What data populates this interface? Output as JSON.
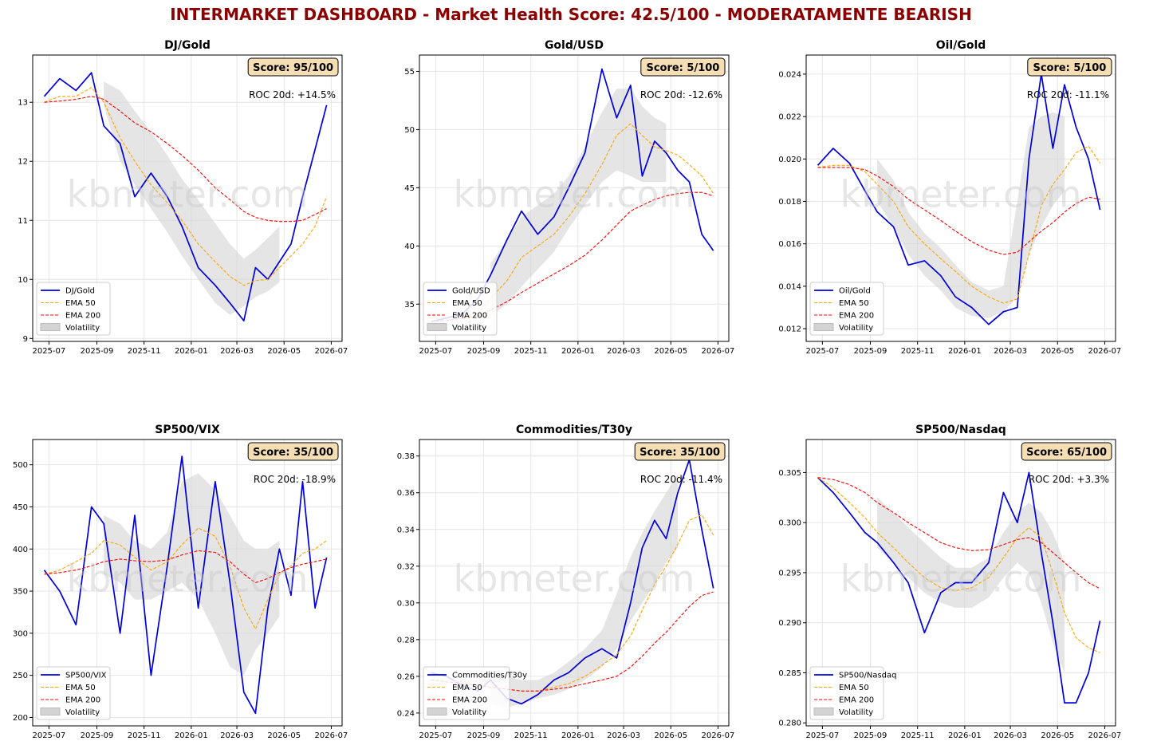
{
  "page": {
    "title": "INTERMARKET DASHBOARD - Market Health Score: 42.5/100 - MODERATAMENTE BEARISH"
  },
  "colors": {
    "title": "#8b0000",
    "price": "#0000dd",
    "ema50": "#ffa500",
    "ema200": "#ff0000",
    "band": "#d3d3d3",
    "score_box": "#f5deb3"
  },
  "watermark": "kbmeter.com",
  "chart_data": [
    {
      "type": "line",
      "title": "DJ/Gold",
      "score": "Score: 95/100",
      "roc": "ROC 20d: +14.5%",
      "x_ticks": [
        "2025-07",
        "2025-09",
        "2025-11",
        "2026-01",
        "2026-03",
        "2026-05",
        "2026-07"
      ],
      "ylim": [
        8.95,
        13.8
      ],
      "y_ticks": [
        9,
        10,
        11,
        12,
        13
      ],
      "y_tick_labels": [
        "9",
        "10",
        "11",
        "12",
        "13"
      ],
      "x": [
        "2025-06-25",
        "2025-07-15",
        "2025-08-05",
        "2025-08-25",
        "2025-09-10",
        "2025-10-01",
        "2025-10-20",
        "2025-11-10",
        "2025-12-01",
        "2025-12-20",
        "2026-01-10",
        "2026-02-01",
        "2026-02-20",
        "2026-03-10",
        "2026-03-25",
        "2026-04-10",
        "2026-04-25",
        "2026-05-10",
        "2026-05-25",
        "2026-06-10",
        "2026-06-25"
      ],
      "series": [
        {
          "name": "DJ/Gold",
          "values": [
            13.1,
            13.4,
            13.2,
            13.5,
            12.6,
            12.3,
            11.4,
            11.8,
            11.4,
            10.9,
            10.2,
            9.9,
            9.6,
            9.3,
            10.2,
            10.0,
            10.3,
            10.6,
            11.4,
            12.2,
            12.95
          ]
        },
        {
          "name": "EMA 50",
          "values": [
            13.0,
            13.1,
            13.1,
            13.25,
            13.0,
            12.4,
            12.0,
            11.6,
            11.3,
            11.0,
            10.6,
            10.3,
            10.05,
            9.9,
            9.98,
            10.0,
            10.2,
            10.4,
            10.6,
            10.9,
            11.4
          ]
        },
        {
          "name": "EMA 200",
          "values": [
            13.0,
            13.02,
            13.05,
            13.1,
            13.05,
            12.85,
            12.65,
            12.5,
            12.3,
            12.1,
            11.85,
            11.55,
            11.35,
            11.15,
            11.05,
            11.0,
            10.98,
            10.98,
            11.0,
            11.1,
            11.2
          ]
        }
      ],
      "band": {
        "start": 4,
        "end": 16,
        "upper": [
          13.35,
          13.2,
          12.85,
          12.5,
          12.1,
          11.7,
          11.35,
          10.95,
          10.6,
          10.35,
          10.5,
          10.7,
          10.9
        ],
        "lower": [
          12.95,
          12.0,
          11.6,
          11.2,
          10.8,
          10.4,
          10.0,
          9.6,
          9.4,
          9.55,
          9.7,
          9.8,
          9.95
        ]
      },
      "legend": [
        "DJ/Gold",
        "EMA 50",
        "EMA 200",
        "Volatility"
      ]
    },
    {
      "type": "line",
      "title": "Gold/USD",
      "score": "Score: 5/100",
      "roc": "ROC 20d: -12.6%",
      "x_ticks": [
        "2025-07",
        "2025-09",
        "2025-11",
        "2026-01",
        "2026-03",
        "2026-05",
        "2026-07"
      ],
      "ylim": [
        31.8,
        56.4
      ],
      "y_ticks": [
        35,
        40,
        45,
        50,
        55
      ],
      "y_tick_labels": [
        "35",
        "40",
        "45",
        "50",
        "55"
      ],
      "x": [
        "2025-06-25",
        "2025-07-15",
        "2025-08-05",
        "2025-08-25",
        "2025-09-10",
        "2025-10-01",
        "2025-10-20",
        "2025-11-10",
        "2025-12-01",
        "2025-12-20",
        "2026-01-10",
        "2026-02-01",
        "2026-02-20",
        "2026-03-10",
        "2026-03-25",
        "2026-04-10",
        "2026-04-25",
        "2026-05-10",
        "2026-05-25",
        "2026-06-10",
        "2026-06-25"
      ],
      "series": [
        {
          "name": "Gold/USD",
          "values": [
            33.5,
            33.8,
            34.2,
            35.5,
            37.5,
            40.5,
            43.0,
            41.0,
            42.5,
            45.0,
            48.0,
            55.2,
            51.0,
            53.8,
            46.0,
            49.0,
            48.0,
            46.5,
            45.5,
            41.0,
            39.6
          ]
        },
        {
          "name": "EMA 50",
          "values": [
            33.5,
            33.6,
            33.8,
            34.2,
            35.5,
            37.0,
            39.0,
            40.0,
            41.0,
            42.5,
            44.5,
            47.0,
            49.5,
            50.5,
            49.5,
            48.5,
            48.2,
            47.8,
            47.0,
            46.0,
            44.5
          ]
        },
        {
          "name": "EMA 200",
          "values": [
            33.5,
            33.6,
            33.8,
            34.0,
            34.5,
            35.2,
            36.0,
            36.8,
            37.6,
            38.3,
            39.2,
            40.5,
            41.8,
            43.0,
            43.5,
            44.0,
            44.3,
            44.5,
            44.6,
            44.6,
            44.3
          ]
        }
      ],
      "band": {
        "start": 4,
        "end": 16,
        "upper": [
          38.5,
          40.5,
          42.5,
          43.5,
          44.5,
          46.0,
          48.5,
          51.5,
          53.5,
          53.5,
          52.0,
          51.0,
          50.5
        ],
        "lower": [
          34.0,
          35.0,
          36.5,
          38.0,
          39.5,
          41.5,
          43.5,
          45.5,
          46.5,
          46.0,
          45.5,
          45.5,
          45.5
        ]
      },
      "legend": [
        "Gold/USD",
        "EMA 50",
        "EMA 200",
        "Volatility"
      ]
    },
    {
      "type": "line",
      "title": "Oil/Gold",
      "score": "Score: 5/100",
      "roc": "ROC 20d: -11.1%",
      "x_ticks": [
        "2025-07",
        "2025-09",
        "2025-11",
        "2026-01",
        "2026-03",
        "2026-05",
        "2026-07"
      ],
      "ylim": [
        0.0114,
        0.0249
      ],
      "y_ticks": [
        0.012,
        0.014,
        0.016,
        0.018,
        0.02,
        0.022,
        0.024
      ],
      "y_tick_labels": [
        "0.012",
        "0.014",
        "0.016",
        "0.018",
        "0.020",
        "0.022",
        "0.024"
      ],
      "x": [
        "2025-06-25",
        "2025-07-15",
        "2025-08-05",
        "2025-08-25",
        "2025-09-10",
        "2025-10-01",
        "2025-10-20",
        "2025-11-10",
        "2025-12-01",
        "2025-12-20",
        "2026-01-10",
        "2026-02-01",
        "2026-02-20",
        "2026-03-10",
        "2026-03-25",
        "2026-04-10",
        "2026-04-25",
        "2026-05-10",
        "2026-05-25",
        "2026-06-10",
        "2026-06-25"
      ],
      "series": [
        {
          "name": "Oil/Gold",
          "values": [
            0.0197,
            0.0205,
            0.0198,
            0.0185,
            0.0175,
            0.0168,
            0.015,
            0.0152,
            0.0145,
            0.0135,
            0.013,
            0.0122,
            0.0128,
            0.013,
            0.02,
            0.024,
            0.0205,
            0.0235,
            0.0215,
            0.02,
            0.0176
          ]
        },
        {
          "name": "EMA 50",
          "values": [
            0.0196,
            0.0197,
            0.0197,
            0.0194,
            0.0188,
            0.018,
            0.0168,
            0.016,
            0.0153,
            0.0147,
            0.014,
            0.0135,
            0.0132,
            0.0134,
            0.0155,
            0.0178,
            0.0188,
            0.0195,
            0.0203,
            0.0206,
            0.0198
          ]
        },
        {
          "name": "EMA 200",
          "values": [
            0.0196,
            0.0196,
            0.0196,
            0.0195,
            0.0192,
            0.0187,
            0.0181,
            0.0176,
            0.0171,
            0.0166,
            0.0161,
            0.0157,
            0.0155,
            0.0156,
            0.0161,
            0.0166,
            0.017,
            0.0175,
            0.0179,
            0.0182,
            0.0181
          ]
        },
        {
          "name": "",
          "values": [
            null,
            null,
            null,
            null,
            null,
            null,
            null,
            null,
            null,
            null,
            null,
            null,
            null,
            null,
            null,
            null,
            null,
            null,
            null,
            null,
            null
          ]
        }
      ],
      "band": {
        "start": 4,
        "end": 17,
        "upper": [
          0.02,
          0.019,
          0.0175,
          0.0165,
          0.0158,
          0.015,
          0.0142,
          0.0138,
          0.014,
          0.018,
          0.0215,
          0.022,
          0.0222,
          0.022
        ],
        "lower": [
          0.018,
          0.0168,
          0.0155,
          0.0145,
          0.0138,
          0.013,
          0.0126,
          0.0125,
          0.0128,
          0.0135,
          0.0155,
          0.0168,
          0.0178,
          0.0185
        ]
      },
      "legend": [
        "Oil/Gold",
        "EMA 50",
        "EMA 200",
        "Volatility"
      ]
    },
    {
      "type": "line",
      "title": "SP500/VIX",
      "score": "Score: 35/100",
      "roc": "ROC 20d: -18.9%",
      "x_ticks": [
        "2025-07",
        "2025-09",
        "2025-11",
        "2026-01",
        "2026-03",
        "2026-05",
        "2026-07"
      ],
      "ylim": [
        190,
        530
      ],
      "y_ticks": [
        200,
        250,
        300,
        350,
        400,
        450,
        500
      ],
      "y_tick_labels": [
        "200",
        "250",
        "300",
        "350",
        "400",
        "450",
        "500"
      ],
      "x": [
        "2025-06-25",
        "2025-07-15",
        "2025-08-05",
        "2025-08-25",
        "2025-09-10",
        "2025-10-01",
        "2025-10-20",
        "2025-11-10",
        "2025-12-01",
        "2025-12-20",
        "2026-01-10",
        "2026-02-01",
        "2026-02-20",
        "2026-03-10",
        "2026-03-25",
        "2026-04-10",
        "2026-04-25",
        "2026-05-10",
        "2026-05-25",
        "2026-06-10",
        "2026-06-25"
      ],
      "series": [
        {
          "name": "SP500/VIX",
          "values": [
            375,
            350,
            310,
            450,
            430,
            300,
            440,
            250,
            380,
            510,
            330,
            480,
            360,
            230,
            205,
            330,
            400,
            345,
            480,
            330,
            390
          ]
        },
        {
          "name": "EMA 50",
          "values": [
            370,
            375,
            385,
            395,
            410,
            405,
            390,
            375,
            385,
            405,
            425,
            415,
            380,
            330,
            305,
            340,
            370,
            380,
            395,
            400,
            410
          ]
        },
        {
          "name": "EMA 200",
          "values": [
            370,
            372,
            375,
            380,
            385,
            388,
            386,
            385,
            387,
            393,
            398,
            396,
            385,
            370,
            360,
            365,
            372,
            378,
            382,
            385,
            388
          ]
        }
      ],
      "band": {
        "start": 4,
        "end": 16,
        "upper": [
          440,
          430,
          410,
          400,
          420,
          480,
          490,
          470,
          440,
          410,
          400,
          400,
          410
        ],
        "lower": [
          370,
          360,
          340,
          340,
          350,
          360,
          340,
          300,
          260,
          250,
          280,
          300,
          320
        ]
      },
      "legend": [
        "SP500/VIX",
        "EMA 50",
        "EMA 200",
        "Volatility"
      ]
    },
    {
      "type": "line",
      "title": "Commodities/T30y",
      "score": "Score: 35/100",
      "roc": "ROC 20d: -11.4%",
      "x_ticks": [
        "2025-07",
        "2025-09",
        "2025-11",
        "2026-01",
        "2026-03",
        "2026-05",
        "2026-07"
      ],
      "ylim": [
        0.233,
        0.389
      ],
      "y_ticks": [
        0.24,
        0.26,
        0.28,
        0.3,
        0.32,
        0.34,
        0.36,
        0.38
      ],
      "y_tick_labels": [
        "0.24",
        "0.26",
        "0.28",
        "0.30",
        "0.32",
        "0.34",
        "0.36",
        "0.38"
      ],
      "x": [
        "2025-06-25",
        "2025-07-15",
        "2025-08-05",
        "2025-08-25",
        "2025-09-10",
        "2025-10-01",
        "2025-10-20",
        "2025-11-10",
        "2025-12-01",
        "2025-12-20",
        "2026-01-10",
        "2026-02-01",
        "2026-02-20",
        "2026-03-10",
        "2026-03-25",
        "2026-04-10",
        "2026-04-25",
        "2026-05-10",
        "2026-05-25",
        "2026-06-10",
        "2026-06-25"
      ],
      "series": [
        {
          "name": "Commodities/T30y",
          "values": [
            0.262,
            0.26,
            0.255,
            0.252,
            0.258,
            0.248,
            0.245,
            0.25,
            0.258,
            0.262,
            0.27,
            0.275,
            0.27,
            0.3,
            0.33,
            0.345,
            0.335,
            0.36,
            0.378,
            0.34,
            0.308
          ]
        },
        {
          "name": "EMA 50",
          "values": [
            0.258,
            0.258,
            0.257,
            0.255,
            0.254,
            0.253,
            0.252,
            0.252,
            0.254,
            0.256,
            0.26,
            0.266,
            0.272,
            0.282,
            0.296,
            0.31,
            0.32,
            0.332,
            0.345,
            0.348,
            0.337
          ]
        },
        {
          "name": "EMA 200",
          "values": [
            0.258,
            0.257,
            0.256,
            0.255,
            0.254,
            0.253,
            0.252,
            0.252,
            0.253,
            0.254,
            0.256,
            0.258,
            0.26,
            0.265,
            0.271,
            0.278,
            0.284,
            0.291,
            0.298,
            0.304,
            0.306
          ]
        }
      ],
      "band": {
        "start": 4,
        "end": 17,
        "upper": [
          0.262,
          0.26,
          0.258,
          0.258,
          0.262,
          0.268,
          0.275,
          0.285,
          0.305,
          0.325,
          0.338,
          0.35,
          0.36,
          0.37
        ],
        "lower": [
          0.245,
          0.243,
          0.245,
          0.248,
          0.25,
          0.253,
          0.258,
          0.265,
          0.275,
          0.29,
          0.3,
          0.31,
          0.322,
          0.33
        ]
      },
      "legend": [
        "Commodities/T30y",
        "EMA 50",
        "EMA 200",
        "Volatility"
      ]
    },
    {
      "type": "line",
      "title": "SP500/Nasdaq",
      "score": "Score: 65/100",
      "roc": "ROC 20d: +3.3%",
      "x_ticks": [
        "2025-07",
        "2025-09",
        "2025-11",
        "2026-01",
        "2026-03",
        "2026-05",
        "2026-07"
      ],
      "ylim": [
        0.2797,
        0.3083
      ],
      "y_ticks": [
        0.28,
        0.285,
        0.29,
        0.295,
        0.3,
        0.305
      ],
      "y_tick_labels": [
        "0.280",
        "0.285",
        "0.290",
        "0.295",
        "0.300",
        "0.305"
      ],
      "x": [
        "2025-06-25",
        "2025-07-15",
        "2025-08-05",
        "2025-08-25",
        "2025-09-10",
        "2025-10-01",
        "2025-10-20",
        "2025-11-10",
        "2025-12-01",
        "2025-12-20",
        "2026-01-10",
        "2026-02-01",
        "2026-02-20",
        "2026-03-10",
        "2026-03-25",
        "2026-04-10",
        "2026-04-25",
        "2026-05-10",
        "2026-05-25",
        "2026-06-10",
        "2026-06-25"
      ],
      "series": [
        {
          "name": "SP500/Nasdaq",
          "values": [
            0.3045,
            0.303,
            0.301,
            0.299,
            0.298,
            0.296,
            0.294,
            0.289,
            0.293,
            0.294,
            0.294,
            0.296,
            0.303,
            0.3,
            0.305,
            0.297,
            0.29,
            0.282,
            0.282,
            0.285,
            0.2902
          ]
        },
        {
          "name": "EMA 50",
          "values": [
            0.3045,
            0.3035,
            0.302,
            0.3005,
            0.299,
            0.2975,
            0.296,
            0.2945,
            0.2935,
            0.2932,
            0.2935,
            0.2945,
            0.2965,
            0.2985,
            0.2995,
            0.2985,
            0.295,
            0.291,
            0.2885,
            0.2875,
            0.287
          ]
        },
        {
          "name": "EMA 200",
          "values": [
            0.3045,
            0.3043,
            0.3038,
            0.303,
            0.302,
            0.301,
            0.3,
            0.299,
            0.298,
            0.2975,
            0.2972,
            0.2973,
            0.2978,
            0.2983,
            0.2985,
            0.298,
            0.297,
            0.296,
            0.295,
            0.294,
            0.2934
          ]
        }
      ],
      "band": {
        "start": 4,
        "end": 17,
        "upper": [
          0.3025,
          0.301,
          0.2995,
          0.298,
          0.2965,
          0.2955,
          0.2955,
          0.2965,
          0.299,
          0.301,
          0.302,
          0.301,
          0.299,
          0.296
        ],
        "lower": [
          0.2975,
          0.296,
          0.2945,
          0.293,
          0.292,
          0.2915,
          0.2915,
          0.2925,
          0.2945,
          0.296,
          0.295,
          0.292,
          0.288,
          0.285
        ]
      },
      "legend": [
        "SP500/Nasdaq",
        "EMA 50",
        "EMA 200",
        "Volatility"
      ]
    }
  ]
}
